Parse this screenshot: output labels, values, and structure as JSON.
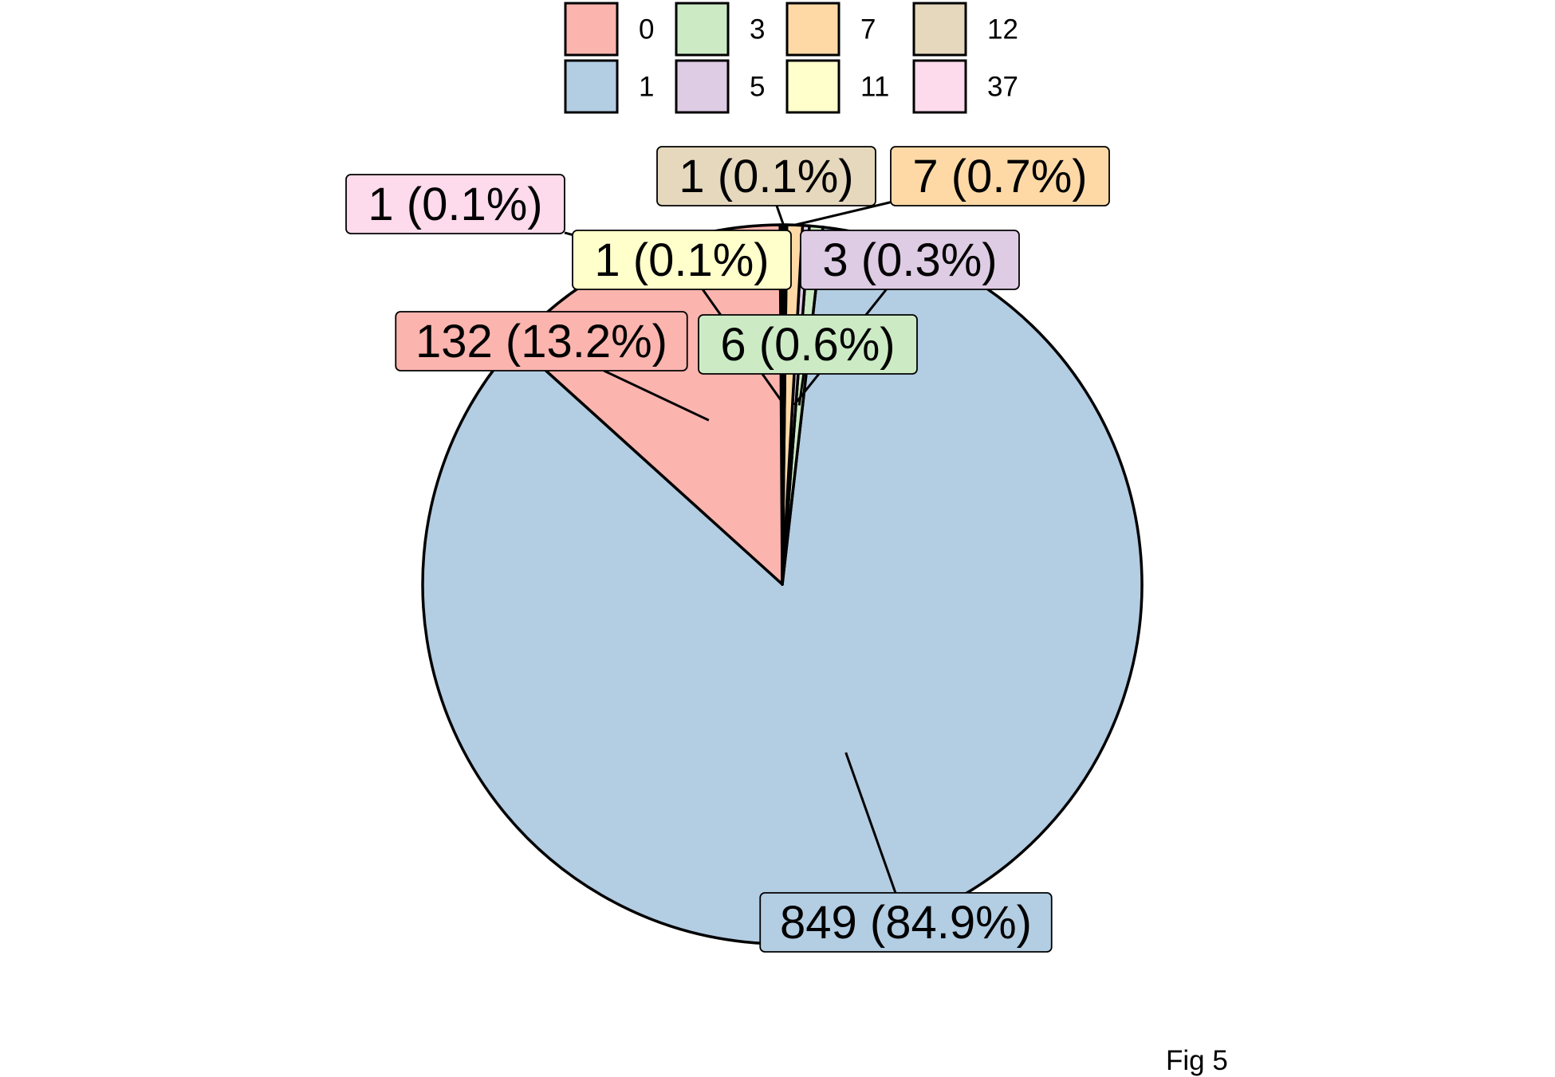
{
  "caption": "Fig 5",
  "chart_data": {
    "type": "pie",
    "title": "",
    "legend_position": "top",
    "categories": [
      "0",
      "1",
      "3",
      "5",
      "7",
      "11",
      "12",
      "37"
    ],
    "values": [
      132,
      849,
      6,
      3,
      7,
      1,
      1,
      1
    ],
    "labels": [
      "132 (13.2%)",
      "849 (84.9%)",
      "6 (0.6%)",
      "3 (0.3%)",
      "7 (0.7%)",
      "1 (0.1%)",
      "1 (0.1%)",
      "1 (0.1%)"
    ],
    "colors": [
      "#FBB4AE",
      "#B3CDE3",
      "#CCEBC5",
      "#DECBE4",
      "#FED9A6",
      "#FFFFCC",
      "#E5D8BD",
      "#FDDAEC"
    ],
    "slice_order": [
      "37",
      "0",
      "1",
      "3",
      "5",
      "7",
      "11",
      "12"
    ]
  }
}
